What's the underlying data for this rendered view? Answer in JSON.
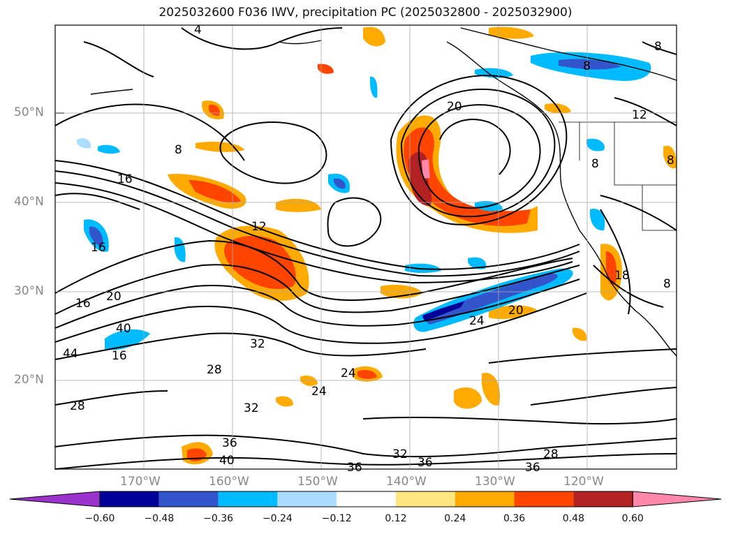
{
  "title": "2025032600 F036 IWV, precipitation PC (2025032800 - 2025032900)",
  "lat_labels": [
    "50°N",
    "40°N",
    "30°N",
    "20°N"
  ],
  "lon_labels": [
    "170°W",
    "160°W",
    "150°W",
    "140°W",
    "130°W",
    "120°W"
  ],
  "colorbar": {
    "tick_labels": [
      "−0.60",
      "−0.48",
      "−0.36",
      "−0.24",
      "−0.12",
      "0.12",
      "0.24",
      "0.36",
      "0.48",
      "0.60"
    ],
    "colors": [
      "#9933cc",
      "#000099",
      "#3355cc",
      "#00bbff",
      "#aaddff",
      "#ffffff",
      "#ffe680",
      "#ffaa00",
      "#ff4400",
      "#b22222",
      "#ff88aa"
    ]
  },
  "contour_labels": [
    "4",
    "8",
    "8",
    "8",
    "12",
    "12",
    "16",
    "16",
    "16",
    "20",
    "20",
    "20",
    "24",
    "24",
    "24",
    "28",
    "28",
    "28",
    "32",
    "32",
    "32",
    "36",
    "36",
    "36",
    "36",
    "40",
    "40",
    "44",
    "8",
    "8",
    "8",
    "18",
    "16"
  ],
  "colors": {
    "coast": "#000000",
    "grid": "#aaaaaa",
    "contour": "#000000"
  }
}
